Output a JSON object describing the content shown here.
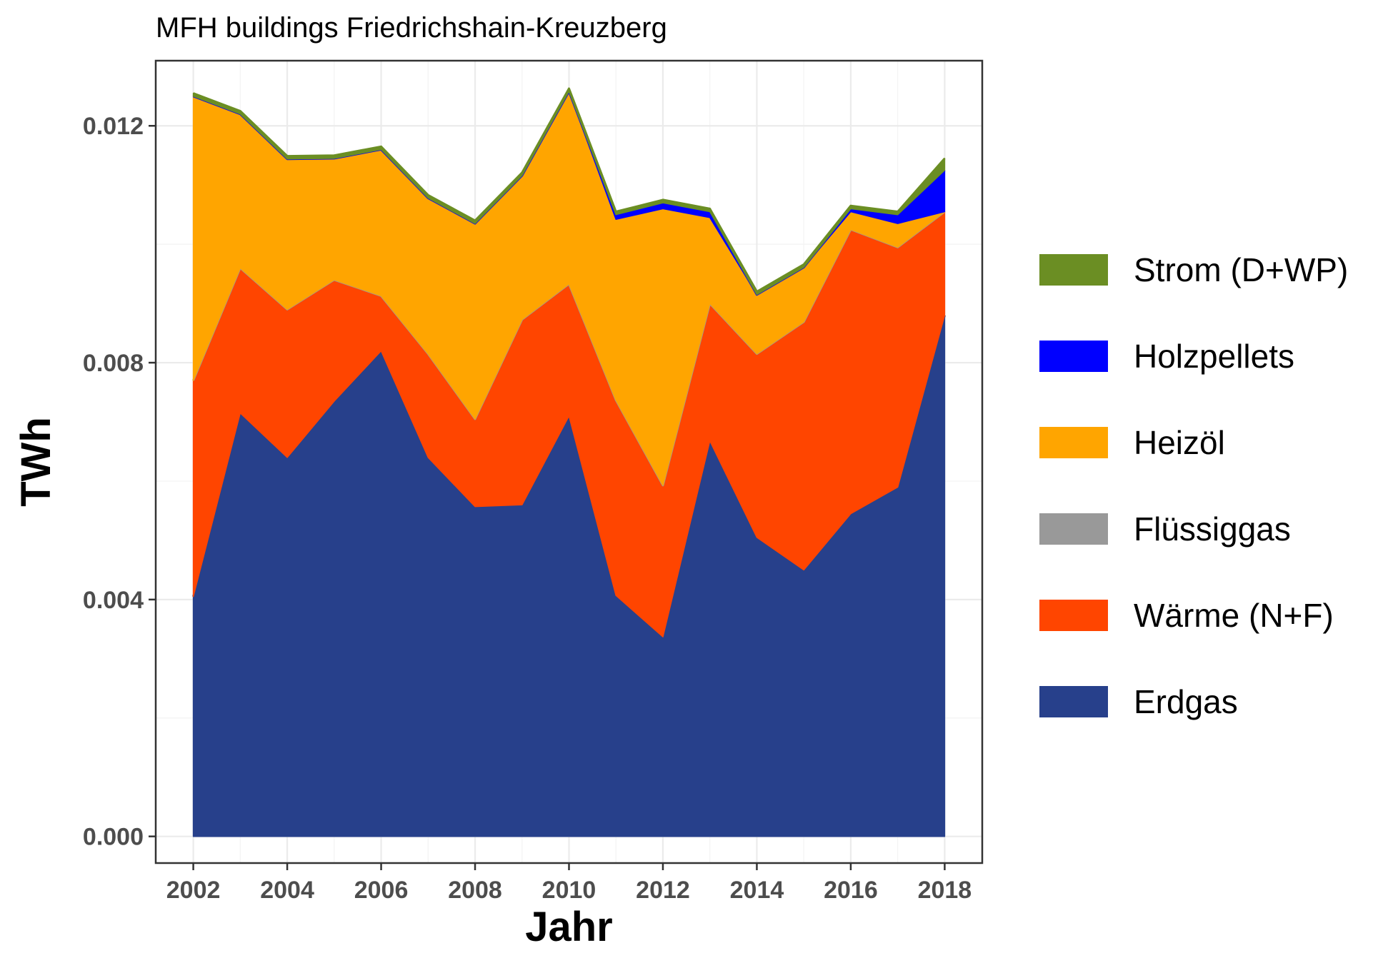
{
  "chart_data": {
    "type": "area",
    "stacked": true,
    "title": "MFH buildings Friedrichshain-Kreuzberg",
    "xlabel": "Jahr",
    "ylabel": "TWh",
    "x": [
      2002,
      2003,
      2004,
      2005,
      2006,
      2007,
      2008,
      2009,
      2010,
      2011,
      2012,
      2013,
      2014,
      2015,
      2016,
      2017,
      2018
    ],
    "xlim": [
      2001.2,
      2018.8
    ],
    "ylim": [
      -0.00045,
      0.0131
    ],
    "x_ticks": [
      "2002",
      "2004",
      "2006",
      "2008",
      "2010",
      "2012",
      "2014",
      "2016",
      "2018"
    ],
    "y_ticks": [
      "0.000",
      "0.004",
      "0.008",
      "0.012"
    ],
    "grid": true,
    "legend_position": "right",
    "series": [
      {
        "name": "Erdgas",
        "color": "#27408b",
        "values": [
          0.00405,
          0.00715,
          0.0064,
          0.00735,
          0.0082,
          0.0064,
          0.00557,
          0.0056,
          0.0071,
          0.00407,
          0.00337,
          0.00668,
          0.00505,
          0.0045,
          0.00545,
          0.0059,
          0.0088
        ]
      },
      {
        "name": "Wärme (N+F)",
        "color": "#ff4500",
        "values": [
          0.00365,
          0.00245,
          0.0025,
          0.00205,
          0.00093,
          0.00175,
          0.00148,
          0.00313,
          0.00223,
          0.0033,
          0.00256,
          0.00232,
          0.0031,
          0.00419,
          0.0048,
          0.00405,
          0.00175
        ]
      },
      {
        "name": "Flüssiggas",
        "color": "#999999",
        "values": [
          0,
          0,
          0,
          0,
          0,
          0,
          0,
          0,
          0,
          0,
          0,
          0,
          0,
          0,
          0,
          0,
          0
        ]
      },
      {
        "name": "Heizöl",
        "color": "#ffa500",
        "values": [
          0.0048,
          0.0026,
          0.00254,
          0.00205,
          0.00247,
          0.00263,
          0.0033,
          0.00243,
          0.00325,
          0.00305,
          0.00467,
          0.00145,
          0.001,
          0.00092,
          0.0003,
          0.0004,
          0.0
        ]
      },
      {
        "name": "Holzpellets",
        "color": "#0000ff",
        "values": [
          0,
          0,
          0,
          0,
          0,
          0,
          0,
          0,
          0,
          8e-05,
          0.0001,
          0.0001,
          0,
          0,
          5e-05,
          0.00015,
          0.0007
        ]
      },
      {
        "name": "Strom (D+WP)",
        "color": "#6b8e23",
        "values": [
          5e-05,
          5e-05,
          5e-05,
          5e-05,
          5e-05,
          5e-05,
          5e-05,
          5e-05,
          5e-05,
          5e-05,
          5e-05,
          5e-05,
          5e-05,
          5e-05,
          5e-05,
          5e-05,
          0.0002
        ]
      }
    ],
    "legend_order": [
      "Strom (D+WP)",
      "Holzpellets",
      "Heizöl",
      "Flüssiggas",
      "Wärme (N+F)",
      "Erdgas"
    ]
  }
}
